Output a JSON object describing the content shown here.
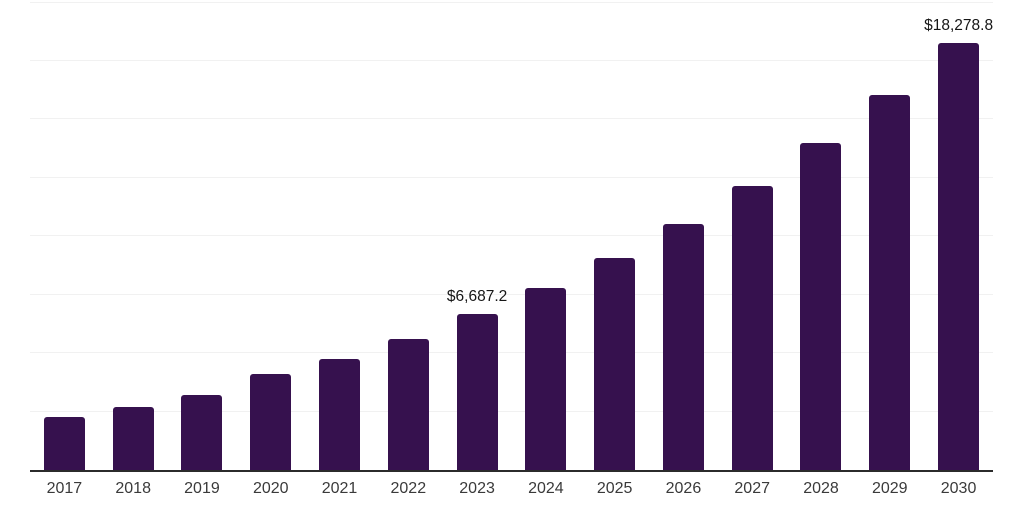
{
  "chart_data": {
    "type": "bar",
    "title": "",
    "xlabel": "",
    "ylabel": "",
    "categories": [
      "2017",
      "2018",
      "2019",
      "2020",
      "2021",
      "2022",
      "2023",
      "2024",
      "2025",
      "2026",
      "2027",
      "2028",
      "2029",
      "2030"
    ],
    "values": [
      2270,
      2710,
      3200,
      4110,
      4740,
      5610,
      6687.2,
      7780,
      9070,
      10530,
      12130,
      13980,
      16040,
      18278.8
    ],
    "value_labels": [
      {
        "category": "2023",
        "text": "$6,687.2"
      },
      {
        "category": "2030",
        "text": "$18,278.8"
      }
    ],
    "ylim": [
      0,
      20000
    ],
    "gridline_step": 2500,
    "grid": "horizontal",
    "legend": "none",
    "y_axis_tick_labels_visible": false,
    "colors": {
      "bar": "#36114e",
      "axis": "#2b2b2b",
      "gridline": "#f1f1f1",
      "tick_label": "#3a3a3a",
      "value_label": "#161616",
      "background": "#ffffff"
    }
  }
}
